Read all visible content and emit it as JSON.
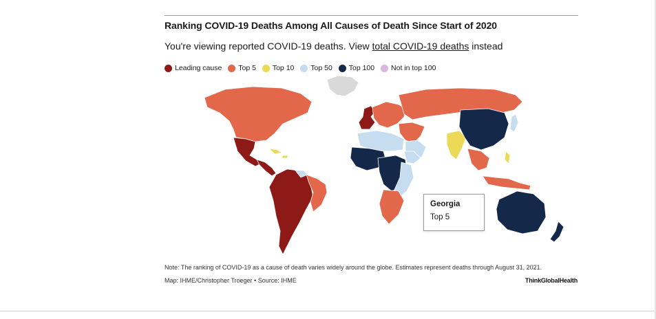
{
  "title": "Ranking COVID-19 Deaths Among All Causes of Death Since Start of 2020",
  "subtitle": {
    "prefix": "You're viewing reported COVID-19 deaths. View",
    "link": "total COVID-19 deaths",
    "suffix": "instead"
  },
  "legend": [
    {
      "label": "Leading cause",
      "color": "#8e1a17"
    },
    {
      "label": "Top 5",
      "color": "#e3674b"
    },
    {
      "label": "Top 10",
      "color": "#ecd956"
    },
    {
      "label": "Top 50",
      "color": "#c6dcef"
    },
    {
      "label": "Top 100",
      "color": "#14284a"
    },
    {
      "label": "Not in top 100",
      "color": "#d9b6e3"
    }
  ],
  "no_data_color": "#d9d9d9",
  "tooltip": {
    "country": "Georgia",
    "rank": "Top 5"
  },
  "regions": [
    {
      "name": "Greenland",
      "category": "no-data"
    },
    {
      "name": "North America",
      "category": "Top 5"
    },
    {
      "name": "Mexico",
      "category": "Leading cause"
    },
    {
      "name": "Central America",
      "category": "Leading cause"
    },
    {
      "name": "Caribbean",
      "category": "Top 10"
    },
    {
      "name": "South America",
      "category": "Leading cause"
    },
    {
      "name": "Guianas",
      "category": "Top 50"
    },
    {
      "name": "Eastern South America",
      "category": "Top 5"
    },
    {
      "name": "Western Europe",
      "category": "Leading cause"
    },
    {
      "name": "Central Europe",
      "category": "Top 5"
    },
    {
      "name": "Russia",
      "category": "Top 5"
    },
    {
      "name": "Middle East",
      "category": "Top 5"
    },
    {
      "name": "Arabian Peninsula",
      "category": "Top 50"
    },
    {
      "name": "North Africa",
      "category": "Top 50"
    },
    {
      "name": "West Africa",
      "category": "Top 100"
    },
    {
      "name": "Central Africa",
      "category": "Top 100"
    },
    {
      "name": "Horn of Africa",
      "category": "Top 50"
    },
    {
      "name": "East Africa",
      "category": "Top 50"
    },
    {
      "name": "Southern Africa",
      "category": "Top 5"
    },
    {
      "name": "India",
      "category": "Top 10"
    },
    {
      "name": "China",
      "category": "Top 100"
    },
    {
      "name": "Southeast Asia",
      "category": "Top 5"
    },
    {
      "name": "Japan",
      "category": "Top 50"
    },
    {
      "name": "Indonesia",
      "category": "Top 5"
    },
    {
      "name": "Philippines",
      "category": "Top 10"
    },
    {
      "name": "Australia",
      "category": "Top 100"
    },
    {
      "name": "New Zealand",
      "category": "Top 100"
    }
  ],
  "note": "Note: The ranking of COVID-19 as a cause of death varies widely around the globe. Estimates represent deaths through August 31, 2021.",
  "credit": "Map: IHME/Christopher Troeger • Source: IHME",
  "brand": "ThinkGlobalHealth"
}
